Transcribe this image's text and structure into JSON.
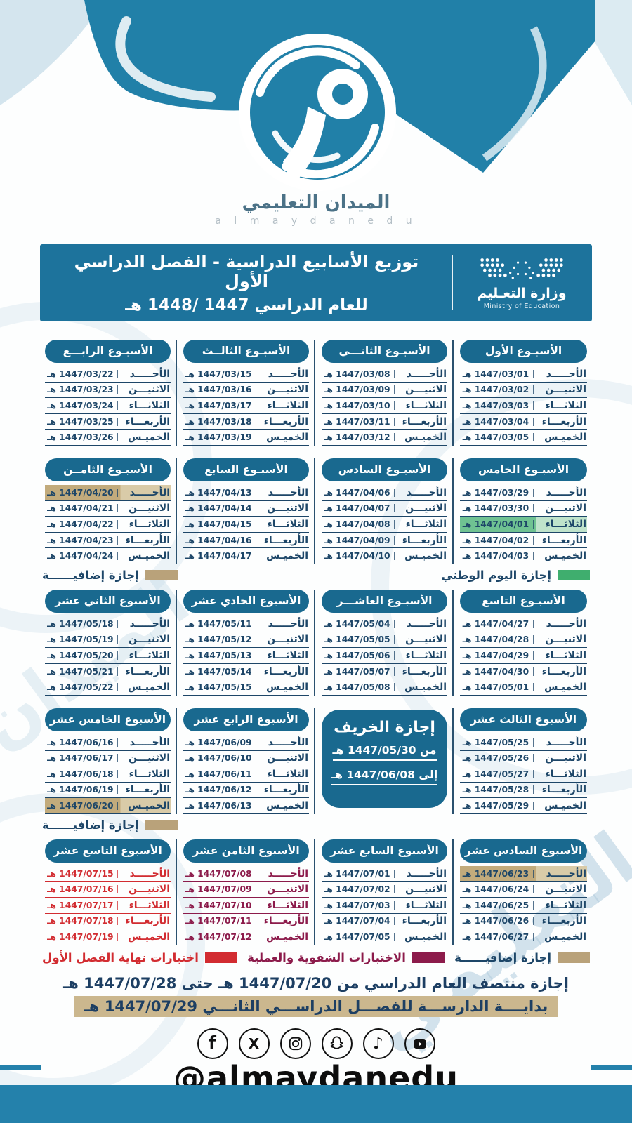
{
  "brand": {
    "title": "الميدان التعليمي",
    "subtitle": "a l m a y d a n e d u",
    "handle": "@almaydanedu"
  },
  "header": {
    "title_line1": "توزيع الأسابيع الدراسية  - الفصل الدراسي الأول",
    "title_line2": "للعام الدراسي 1447 /1448 هـ",
    "ministry_ar": "وزارة التعـليم",
    "ministry_en": "Ministry of Education"
  },
  "days": [
    "الأحـــــد",
    "الاثنيـــن",
    "الثلاثـــاء",
    "الأربعـــاء",
    "الخميـس"
  ],
  "weeks": [
    {
      "title": "الأسبـوع الأول",
      "dates": [
        "1447/03/01 هـ",
        "1447/03/02 هـ",
        "1447/03/03 هـ",
        "1447/03/04 هـ",
        "1447/03/05 هـ"
      ]
    },
    {
      "title": "الأسبـوع الثانـــي",
      "dates": [
        "1447/03/08 هـ",
        "1447/03/09 هـ",
        "1447/03/10 هـ",
        "1447/03/11 هـ",
        "1447/03/12 هـ"
      ]
    },
    {
      "title": "الأسبـوع الثالــث",
      "dates": [
        "1447/03/15 هـ",
        "1447/03/16 هـ",
        "1447/03/17 هـ",
        "1447/03/18 هـ",
        "1447/03/19 هـ"
      ]
    },
    {
      "title": "الأسبـوع الرابـــع",
      "dates": [
        "1447/03/22 هـ",
        "1447/03/23 هـ",
        "1447/03/24 هـ",
        "1447/03/25 هـ",
        "1447/03/26 هـ"
      ]
    },
    {
      "title": "الأسبـوع الخامس",
      "dates": [
        "1447/03/29 هـ",
        "1447/03/30 هـ",
        "1447/04/01 هـ",
        "1447/04/02 هـ",
        "1447/04/03 هـ"
      ],
      "highlights": {
        "2": "green"
      }
    },
    {
      "title": "الأسبـوع السادس",
      "dates": [
        "1447/04/06 هـ",
        "1447/04/07 هـ",
        "1447/04/08 هـ",
        "1447/04/09 هـ",
        "1447/04/10 هـ"
      ]
    },
    {
      "title": "الأسبـوع السابع",
      "dates": [
        "1447/04/13 هـ",
        "1447/04/14 هـ",
        "1447/04/15 هـ",
        "1447/04/16 هـ",
        "1447/04/17 هـ"
      ]
    },
    {
      "title": "الأسبـوع الثامــن",
      "dates": [
        "1447/04/20 هـ",
        "1447/04/21 هـ",
        "1447/04/22 هـ",
        "1447/04/23 هـ",
        "1447/04/24 هـ"
      ],
      "highlights": {
        "0": "tan"
      }
    },
    {
      "title": "الأسبـوع التاسع",
      "dates": [
        "1447/04/27 هـ",
        "1447/04/28 هـ",
        "1447/04/29 هـ",
        "1447/04/30 هـ",
        "1447/05/01 هـ"
      ]
    },
    {
      "title": "الأسبـوع العاشـــر",
      "dates": [
        "1447/05/04 هـ",
        "1447/05/05 هـ",
        "1447/05/06 هـ",
        "1447/05/07 هـ",
        "1447/05/08 هـ"
      ]
    },
    {
      "title": "الأسبوع الحادي عشر",
      "dates": [
        "1447/05/11 هـ",
        "1447/05/12 هـ",
        "1447/05/13 هـ",
        "1447/05/14 هـ",
        "1447/05/15 هـ"
      ]
    },
    {
      "title": "الأسبوع الثاني عشر",
      "dates": [
        "1447/05/18 هـ",
        "1447/05/19 هـ",
        "1447/05/20 هـ",
        "1447/05/21 هـ",
        "1447/05/22 هـ"
      ]
    },
    {
      "title": "الأسبوع الثالث عشر",
      "dates": [
        "1447/05/25 هـ",
        "1447/05/26 هـ",
        "1447/05/27 هـ",
        "1447/05/28 هـ",
        "1447/05/29 هـ"
      ]
    },
    {
      "title": "الأسبوع الرابع عشر",
      "dates": [
        "1447/06/09 هـ",
        "1447/06/10 هـ",
        "1447/06/11 هـ",
        "1447/06/12 هـ",
        "1447/06/13 هـ"
      ]
    },
    {
      "title": "الأسبوع الخامس عشر",
      "dates": [
        "1447/06/16 هـ",
        "1447/06/17 هـ",
        "1447/06/18 هـ",
        "1447/06/19 هـ",
        "1447/06/20 هـ"
      ],
      "highlights": {
        "4": "tan"
      }
    },
    {
      "title": "الأسبوع السادس عشر",
      "dates": [
        "1447/06/23 هـ",
        "1447/06/24 هـ",
        "1447/06/25 هـ",
        "1447/06/26 هـ",
        "1447/06/27 هـ"
      ],
      "highlights": {
        "0": "tan"
      }
    },
    {
      "title": "الأسبوع السابع عشر",
      "dates": [
        "1447/07/01 هـ",
        "1447/07/02 هـ",
        "1447/07/03 هـ",
        "1447/07/04 هـ",
        "1447/07/05 هـ"
      ]
    },
    {
      "title": "الأسبوع الثامن عشر",
      "dates": [
        "1447/07/08 هـ",
        "1447/07/09 هـ",
        "1447/07/10 هـ",
        "1447/07/11 هـ",
        "1447/07/12 هـ"
      ],
      "theme": "maroon"
    },
    {
      "title": "الأسبوع التاسع عشر",
      "dates": [
        "1447/07/15 هـ",
        "1447/07/16 هـ",
        "1447/07/17 هـ",
        "1447/07/18 هـ",
        "1447/07/19 هـ"
      ],
      "theme": "red"
    }
  ],
  "fall_break": {
    "title": "إجازة الخريف",
    "from": "من 1447/05/30 هـ",
    "to": "إلى 1447/06/08 هـ"
  },
  "legends": {
    "national_day": {
      "label": "إجازة اليوم الوطني",
      "color": "#3fae6e"
    },
    "extra_holiday": {
      "label": "إجازة إضافيــــــة",
      "color": "#b9a27a"
    },
    "oral_practical_exams": {
      "label": "الاختبارات الشفوية والعملية",
      "color": "#8c1b4b"
    },
    "final_exams": {
      "label": "اختبارات نهاية الفصل الأول",
      "color": "#d22c31"
    }
  },
  "footer": {
    "midyear_break": "إجازة منتصف العام الدراسي من 1447/07/20 هـ حتى 1447/07/28 هـ",
    "second_semester_start": "بدايــــة الدارســـة للفصـــل الدراســـي الثانـــي 1447/07/29 هـ"
  },
  "social": [
    "facebook-icon",
    "x-icon",
    "instagram-icon",
    "snapchat-icon",
    "tiktok-icon",
    "youtube-icon"
  ],
  "colors": {
    "primary_teal": "#2180a8",
    "header_bar": "#1d739c",
    "pill": "#19698f",
    "navy_text": "#1d4668",
    "green": "#3fae6e",
    "green_row": "#6fc292",
    "tan": "#b9a27a",
    "tan_row": "#c2ab7c",
    "maroon": "#8c1b4b",
    "red": "#d22c31",
    "footer_highlight": "#cbb78e",
    "bottom_bar": "#2481ab"
  }
}
